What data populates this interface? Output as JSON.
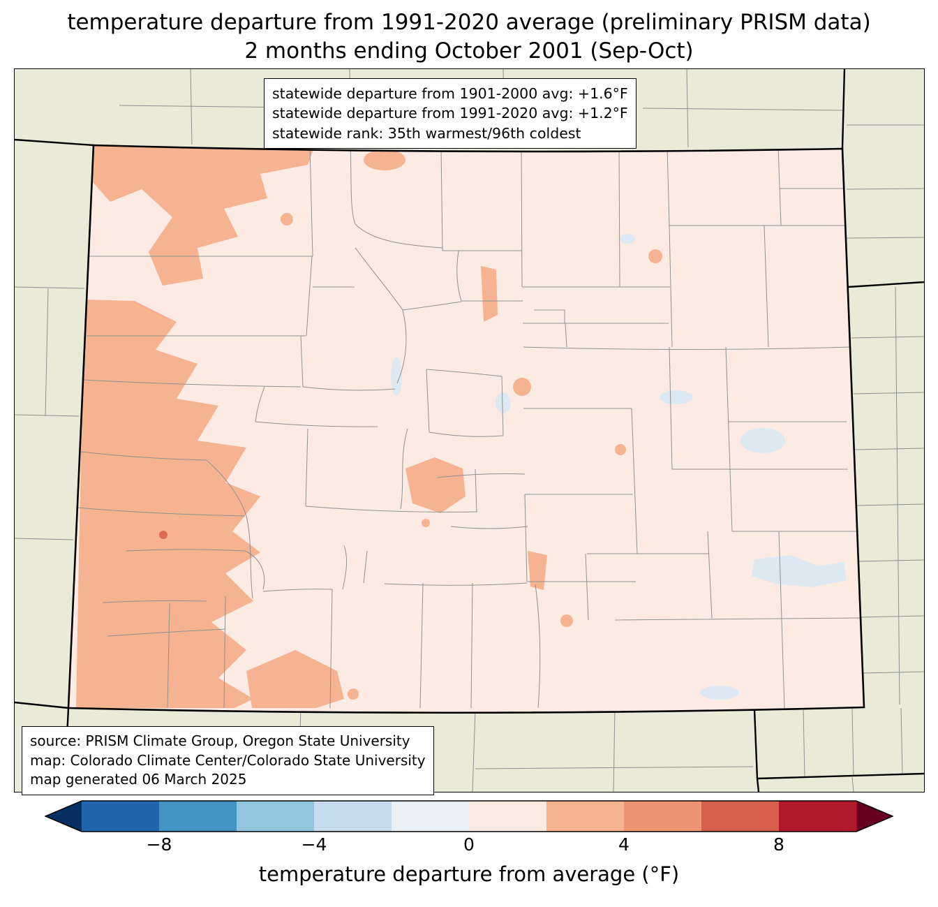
{
  "title": {
    "line1": "temperature departure from 1991-2020 average (preliminary PRISM data)",
    "line2": "2 months ending October 2001 (Sep-Oct)"
  },
  "stats_box": {
    "line1": "statewide departure from 1901-2000 avg: +1.6°F",
    "line2": "statewide departure from 1991-2020 avg: +1.2°F",
    "line3": "statewide rank: 35th warmest/96th coldest"
  },
  "source_box": {
    "line1": "source: PRISM Climate Group, Oregon State University",
    "line2": "map: Colorado Climate Center/Colorado State University",
    "line3": "map generated 06 March 2025"
  },
  "colorbar": {
    "label": "temperature departure from average (°F)",
    "ticks": [
      {
        "label": "−8",
        "percent": 10
      },
      {
        "label": "−4",
        "percent": 30
      },
      {
        "label": "0",
        "percent": 50
      },
      {
        "label": "4",
        "percent": 70
      },
      {
        "label": "8",
        "percent": 90
      }
    ],
    "segment_colors": [
      "#2166ac",
      "#4393c3",
      "#92c5de",
      "#c6dbeb",
      "#e8f0f5",
      "#fbeae1",
      "#f6b391",
      "#ee9472",
      "#d6604d",
      "#b2182b"
    ],
    "under_arrow_color": "#053061",
    "over_arrow_color": "#67001f",
    "value_range": [
      -10,
      10
    ]
  },
  "map": {
    "region": "Colorado",
    "colors": {
      "background_land": "#eaead8",
      "state_fill": "#fcebe2",
      "warm_patch": "#f6b391",
      "warm_spot": "#dd6a52",
      "cool_patch": "#dde9f2",
      "county_line": "#909090",
      "state_border": "#000000"
    }
  }
}
